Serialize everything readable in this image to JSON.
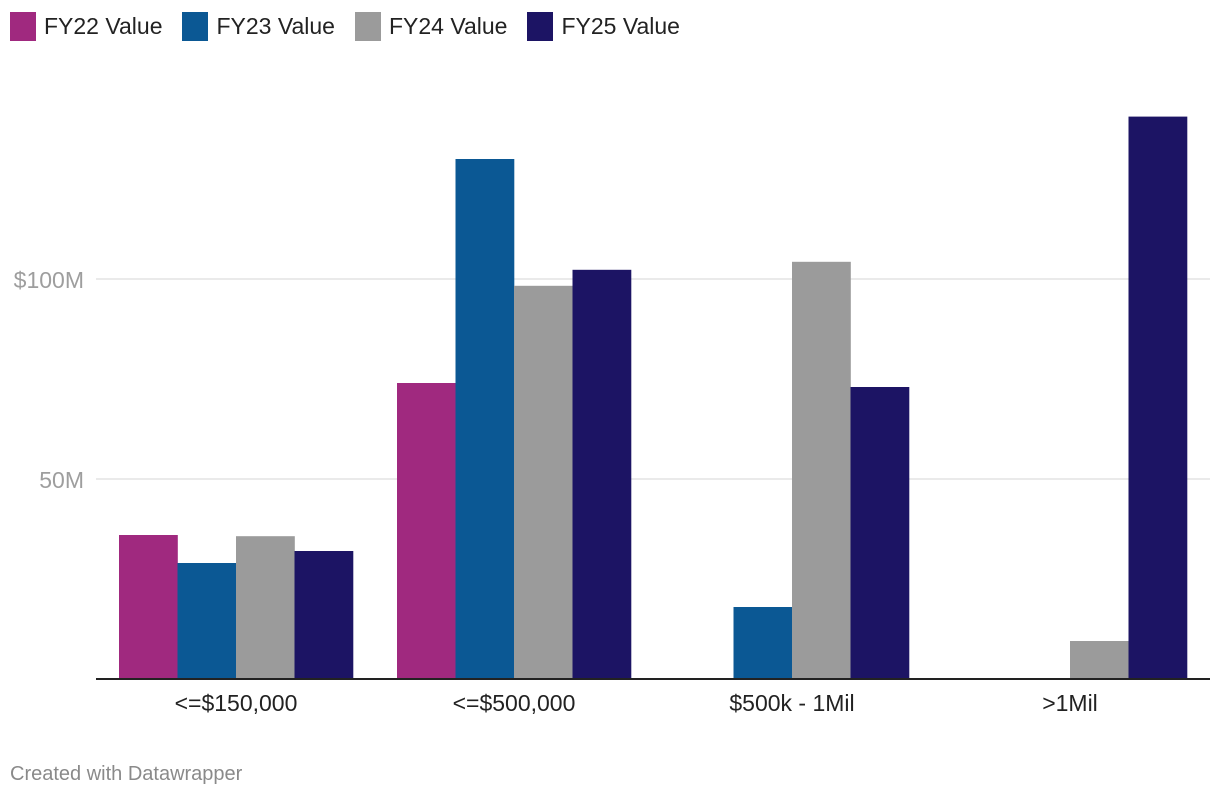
{
  "chart_data": {
    "type": "bar",
    "title": "",
    "xlabel": "",
    "ylabel": "",
    "categories": [
      "<=$150,000",
      "<=$500,000",
      "$500k - 1Mil",
      ">1Mil"
    ],
    "series": [
      {
        "name": "FY22 Value",
        "color": "#a0297f",
        "values": [
          36,
          74,
          0,
          0
        ]
      },
      {
        "name": "FY23 Value",
        "color": "#0b5894",
        "values": [
          29,
          130,
          18,
          0
        ]
      },
      {
        "name": "FY24 Value",
        "color": "#9b9b9b",
        "values": [
          35.7,
          98.3,
          104.3,
          9.5
        ]
      },
      {
        "name": "FY25 Value",
        "color": "#1c1464",
        "values": [
          32,
          102.3,
          73,
          140.6
        ]
      }
    ],
    "y_ticks": [
      {
        "value": 50,
        "label": "50M"
      },
      {
        "value": 100,
        "label": "$100M"
      }
    ],
    "ylim": [
      0,
      150
    ],
    "grid": true,
    "legend": "top-left",
    "unit": "millions of dollars"
  },
  "footer": {
    "credit": "Created with Datawrapper"
  }
}
